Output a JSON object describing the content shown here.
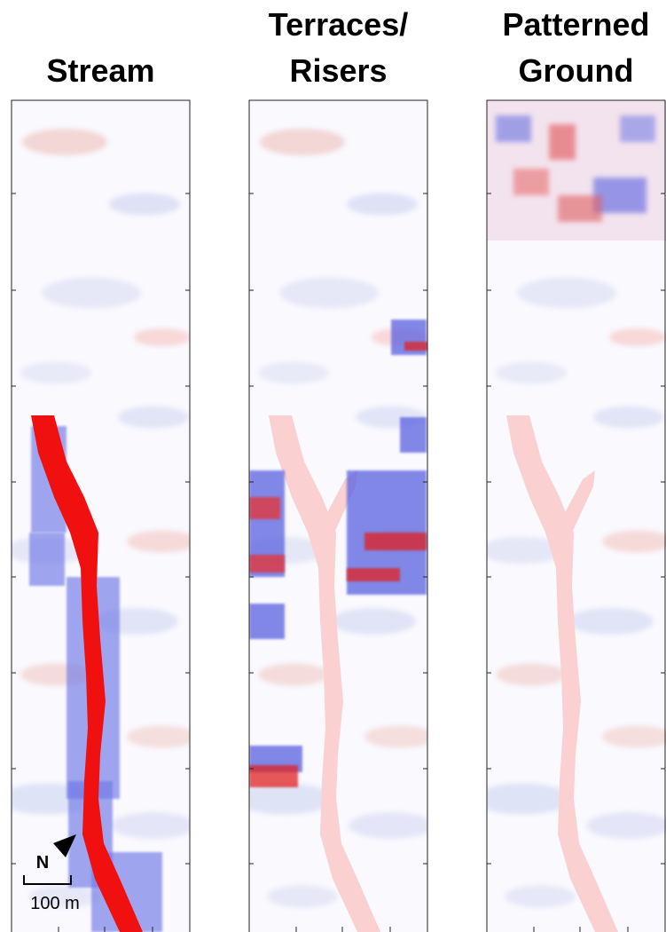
{
  "panels": [
    {
      "title_lines": [
        "Stream"
      ]
    },
    {
      "title_lines": [
        "Terraces/",
        "Risers"
      ]
    },
    {
      "title_lines": [
        "Patterned",
        "Ground"
      ]
    }
  ],
  "scale_bar": {
    "label": "100 m"
  },
  "north_arrow": {
    "label": "N"
  }
}
